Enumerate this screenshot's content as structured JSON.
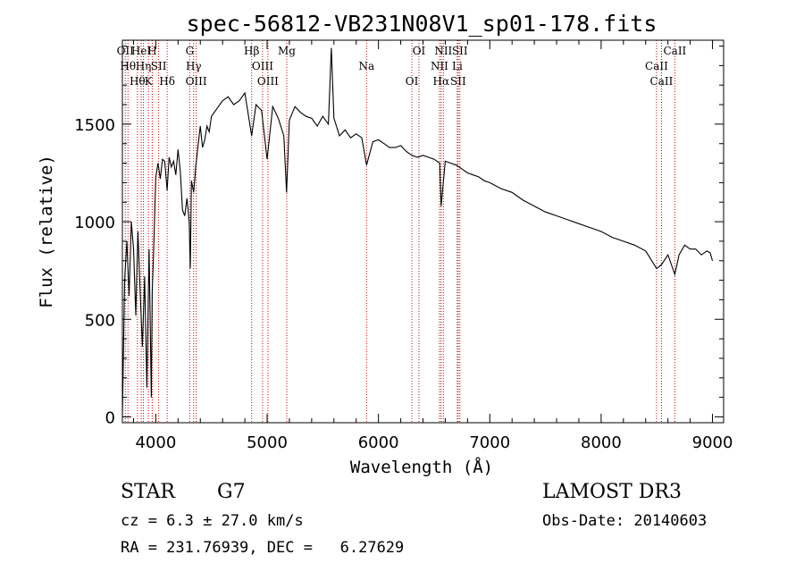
{
  "chart_data": {
    "type": "line",
    "title": "spec-56812-VB231N08V1_sp01-178.fits",
    "xlabel": "Wavelength (Å)",
    "ylabel": "Flux (relative)",
    "xlim": [
      3700,
      9100
    ],
    "ylim": [
      -30,
      1930
    ],
    "x_ticks": [
      4000,
      5000,
      6000,
      7000,
      8000,
      9000
    ],
    "y_ticks": [
      0,
      500,
      1000,
      1500
    ],
    "grid": false,
    "series": [
      {
        "x": [
          3700,
          3720,
          3740,
          3760,
          3780,
          3800,
          3820,
          3840,
          3860,
          3880,
          3900,
          3920,
          3940,
          3960,
          3968,
          3980,
          4000,
          4020,
          4040,
          4060,
          4080,
          4102,
          4120,
          4140,
          4160,
          4180,
          4200,
          4220,
          4240,
          4260,
          4280,
          4300,
          4310,
          4320,
          4340,
          4360,
          4380,
          4400,
          4420,
          4440,
          4460,
          4480,
          4500,
          4550,
          4600,
          4650,
          4700,
          4750,
          4800,
          4861,
          4900,
          4950,
          5000,
          5050,
          5100,
          5150,
          5175,
          5200,
          5250,
          5300,
          5350,
          5400,
          5450,
          5500,
          5550,
          5577,
          5600,
          5650,
          5700,
          5750,
          5800,
          5850,
          5893,
          5950,
          6000,
          6050,
          6100,
          6150,
          6200,
          6250,
          6300,
          6350,
          6400,
          6450,
          6500,
          6550,
          6563,
          6600,
          6650,
          6700,
          6750,
          6800,
          6850,
          6900,
          6950,
          7000,
          7100,
          7200,
          7300,
          7400,
          7500,
          7600,
          7700,
          7800,
          7900,
          8000,
          8100,
          8200,
          8300,
          8400,
          8498,
          8542,
          8600,
          8662,
          8700,
          8750,
          8800,
          8850,
          8900,
          8950,
          8980,
          9000
        ],
        "y": [
          0,
          700,
          900,
          620,
          1000,
          860,
          520,
          950,
          640,
          360,
          720,
          150,
          860,
          100,
          640,
          840,
          1230,
          1300,
          1220,
          1320,
          1310,
          1160,
          1330,
          1280,
          1310,
          1240,
          1370,
          1260,
          1060,
          1030,
          1120,
          1000,
          760,
          1210,
          1150,
          1290,
          1390,
          1490,
          1380,
          1420,
          1490,
          1460,
          1540,
          1580,
          1620,
          1640,
          1600,
          1620,
          1660,
          1440,
          1600,
          1570,
          1320,
          1590,
          1530,
          1440,
          1150,
          1520,
          1590,
          1560,
          1540,
          1530,
          1490,
          1540,
          1500,
          1890,
          1530,
          1440,
          1470,
          1430,
          1450,
          1430,
          1290,
          1410,
          1420,
          1400,
          1380,
          1380,
          1390,
          1360,
          1340,
          1330,
          1340,
          1330,
          1320,
          1300,
          1080,
          1310,
          1300,
          1290,
          1270,
          1250,
          1240,
          1230,
          1210,
          1200,
          1170,
          1150,
          1110,
          1080,
          1050,
          1030,
          1010,
          990,
          970,
          950,
          920,
          900,
          880,
          850,
          760,
          780,
          830,
          730,
          830,
          880,
          860,
          860,
          830,
          850,
          840,
          800
        ]
      }
    ],
    "line_marks": [
      {
        "wl": 3726,
        "label": "OII"
      },
      {
        "wl": 3750,
        "label": "Hθ"
      },
      {
        "wl": 3835,
        "label": "Hθ"
      },
      {
        "wl": 3869,
        "label": "HeI"
      },
      {
        "wl": 3889,
        "label": "Hη"
      },
      {
        "wl": 3934,
        "label": "K"
      },
      {
        "wl": 3968,
        "label": "H"
      },
      {
        "wl": 4026,
        "label": "SII"
      },
      {
        "wl": 4102,
        "label": "Hδ"
      },
      {
        "wl": 4305,
        "label": "G"
      },
      {
        "wl": 4340,
        "label": "Hγ"
      },
      {
        "wl": 4363,
        "label": "OIII"
      },
      {
        "wl": 4861,
        "label": "Hβ"
      },
      {
        "wl": 4959,
        "label": "OIII"
      },
      {
        "wl": 5007,
        "label": "OIII"
      },
      {
        "wl": 5176,
        "label": "Mg"
      },
      {
        "wl": 5893,
        "label": "Na"
      },
      {
        "wl": 6300,
        "label": "OI"
      },
      {
        "wl": 6364,
        "label": "OI"
      },
      {
        "wl": 6548,
        "label": "NII"
      },
      {
        "wl": 6563,
        "label": "Hα"
      },
      {
        "wl": 6583,
        "label": "NII"
      },
      {
        "wl": 6708,
        "label": "Li"
      },
      {
        "wl": 6716,
        "label": "SII"
      },
      {
        "wl": 6731,
        "label": "SII"
      },
      {
        "wl": 8498,
        "label": "CaII"
      },
      {
        "wl": 8542,
        "label": "CaII"
      },
      {
        "wl": 8662,
        "label": "CaII"
      }
    ],
    "line_mark_color": "#cc0000"
  },
  "info": {
    "object_type": "STAR",
    "subclass": "G7",
    "survey": "LAMOST DR3",
    "redshift": "cz = 6.3 ± 27.0 km/s",
    "obs_date": "Obs-Date: 20140603",
    "coords": "RA = 231.76939, DEC =   6.27629"
  }
}
